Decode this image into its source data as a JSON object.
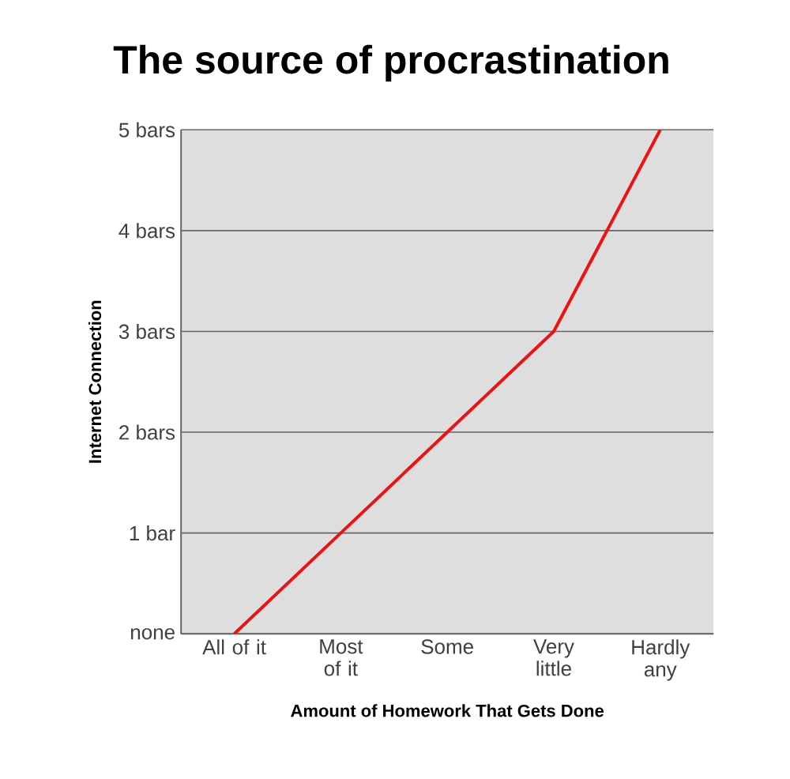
{
  "chart_data": {
    "type": "line",
    "title": "The source of procrastination",
    "xlabel": "Amount of Homework That Gets Done",
    "ylabel": "Internet Connection",
    "categories": [
      "All of it",
      "Most of it",
      "Some",
      "Very little",
      "Hardly any"
    ],
    "series": [
      {
        "color": "#ee1111",
        "values": [
          0,
          1,
          2,
          3,
          5
        ]
      }
    ],
    "ylim": [
      0,
      5
    ],
    "yticks": [
      {
        "value": 0,
        "label": "none"
      },
      {
        "value": 1,
        "label": "1 bar"
      },
      {
        "value": 2,
        "label": "2 bars"
      },
      {
        "value": 3,
        "label": "3 bars"
      },
      {
        "value": 4,
        "label": "4 bars"
      },
      {
        "value": 5,
        "label": "5 bars"
      }
    ],
    "grid": "y",
    "marker": "none",
    "line_style": "solid"
  }
}
